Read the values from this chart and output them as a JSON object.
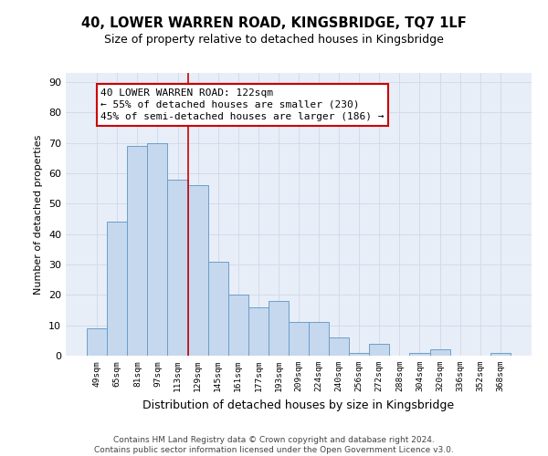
{
  "title": "40, LOWER WARREN ROAD, KINGSBRIDGE, TQ7 1LF",
  "subtitle": "Size of property relative to detached houses in Kingsbridge",
  "xlabel": "Distribution of detached houses by size in Kingsbridge",
  "ylabel": "Number of detached properties",
  "categories": [
    "49sqm",
    "65sqm",
    "81sqm",
    "97sqm",
    "113sqm",
    "129sqm",
    "145sqm",
    "161sqm",
    "177sqm",
    "193sqm",
    "209sqm",
    "224sqm",
    "240sqm",
    "256sqm",
    "272sqm",
    "288sqm",
    "304sqm",
    "320sqm",
    "336sqm",
    "352sqm",
    "368sqm"
  ],
  "values": [
    9,
    44,
    69,
    70,
    58,
    56,
    31,
    20,
    16,
    18,
    11,
    11,
    6,
    1,
    4,
    0,
    1,
    2,
    0,
    0,
    1
  ],
  "bar_color": "#c5d8ee",
  "bar_edge_color": "#6b9fc8",
  "vline_index": 4,
  "vline_color": "#cc0000",
  "annotation_line1": "40 LOWER WARREN ROAD: 122sqm",
  "annotation_line2": "← 55% of detached houses are smaller (230)",
  "annotation_line3": "45% of semi-detached houses are larger (186) →",
  "annotation_box_facecolor": "#ffffff",
  "annotation_box_edge": "#cc0000",
  "ylim": [
    0,
    93
  ],
  "yticks": [
    0,
    10,
    20,
    30,
    40,
    50,
    60,
    70,
    80,
    90
  ],
  "grid_color": "#d0d8e8",
  "background_color": "#e8eef8",
  "footer": "Contains HM Land Registry data © Crown copyright and database right 2024.\nContains public sector information licensed under the Open Government Licence v3.0.",
  "title_fontsize": 10.5,
  "subtitle_fontsize": 9,
  "xlabel_fontsize": 9,
  "ylabel_fontsize": 8,
  "annotation_fontsize": 8,
  "footer_fontsize": 6.5
}
